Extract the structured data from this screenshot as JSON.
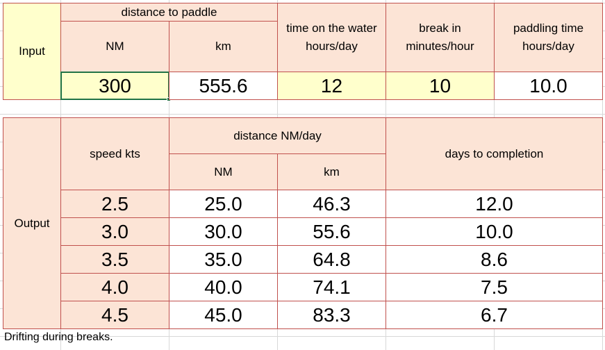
{
  "input": {
    "row_label": "Input",
    "distance_header": "distance to paddle",
    "nm_header": "NM",
    "km_header": "km",
    "time_header_line1": "time on the water",
    "time_header_line2": "hours/day",
    "break_header_line1": "break in",
    "break_header_line2": "minutes/hour",
    "paddling_header_line1": "paddling time",
    "paddling_header_line2": "hours/day",
    "nm_value": "300",
    "km_value": "555.6",
    "time_value": "12",
    "break_value": "10",
    "paddling_value": "10.0"
  },
  "output": {
    "row_label": "Output",
    "speed_header": "speed kts",
    "distance_header": "distance NM/day",
    "nm_header": "NM",
    "km_header": "km",
    "days_header": "days to completion",
    "rows": [
      {
        "speed": "2.5",
        "nm": "25.0",
        "km": "46.3",
        "days": "12.0"
      },
      {
        "speed": "3.0",
        "nm": "30.0",
        "km": "55.6",
        "days": "10.0"
      },
      {
        "speed": "3.5",
        "nm": "35.0",
        "km": "64.8",
        "days": "8.6"
      },
      {
        "speed": "4.0",
        "nm": "40.0",
        "km": "74.1",
        "days": "7.5"
      },
      {
        "speed": "4.5",
        "nm": "45.0",
        "km": "83.3",
        "days": "6.7"
      }
    ]
  },
  "note": "Drifting during breaks.",
  "colors": {
    "input_cell": "#ffffcc",
    "header_cell": "#fce4d6",
    "border": "#c0504d",
    "selection": "#217346"
  }
}
